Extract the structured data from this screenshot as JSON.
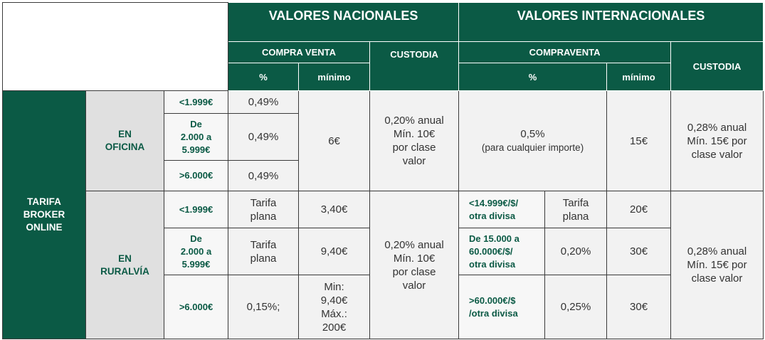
{
  "header": {
    "nacionales": "VALORES NACIONALES",
    "internacionales": "VALORES INTERNACIONALES",
    "nac_compraventa": "COMPRA VENTA",
    "nac_custodia": "CUSTODIA",
    "int_compraventa": "COMPRAVENTA",
    "int_custodia": "CUSTODIA",
    "nac_pct": "%",
    "nac_min": "mínimo",
    "int_pct": "%",
    "int_min": "mínimo"
  },
  "table": {
    "group": "TARIFA\nBROKER\nONLINE",
    "oficina": {
      "channel": "EN\nOFICINA",
      "rows": [
        [
          "<1.999€",
          "0,49%"
        ],
        [
          "De\n2.000 a\n5.999€",
          "0,49%"
        ],
        [
          ">6.000€",
          "0,49%"
        ]
      ],
      "nac_min": "6€",
      "nac_custodia": "0,20% anual\nMín. 10€\npor clase\nvalor",
      "int_pct": "0,5%",
      "int_pct_note": "(para cualquier importe)",
      "int_min": "15€",
      "int_custodia": "0,28% anual\nMín. 15€ por\nclase valor"
    },
    "ruralvia": {
      "channel": "EN\nRURALVÍA",
      "rows": [
        [
          "<1.999€",
          "Tarifa\nplana",
          "3,40€",
          "<14.999€/$/\notra divisa",
          "Tarifa\nplana",
          "20€"
        ],
        [
          "De\n2.000 a\n5.999€",
          "Tarifa\nplana",
          "9,40€",
          "De 15.000 a\n60.000€/$/\notra divisa",
          "0,20%",
          "30€"
        ],
        [
          ">6.000€",
          "0,15%;",
          "Min:\n9,40€\nMáx.:\n200€",
          ">60.000€/$\n/otra divisa",
          "0,25%",
          "30€"
        ]
      ],
      "nac_custodia": "0,20% anual\nMín. 10€\npor clase\nvalor",
      "int_custodia": "0,28% anual\nMín. 15€ por\nclase valor"
    }
  }
}
